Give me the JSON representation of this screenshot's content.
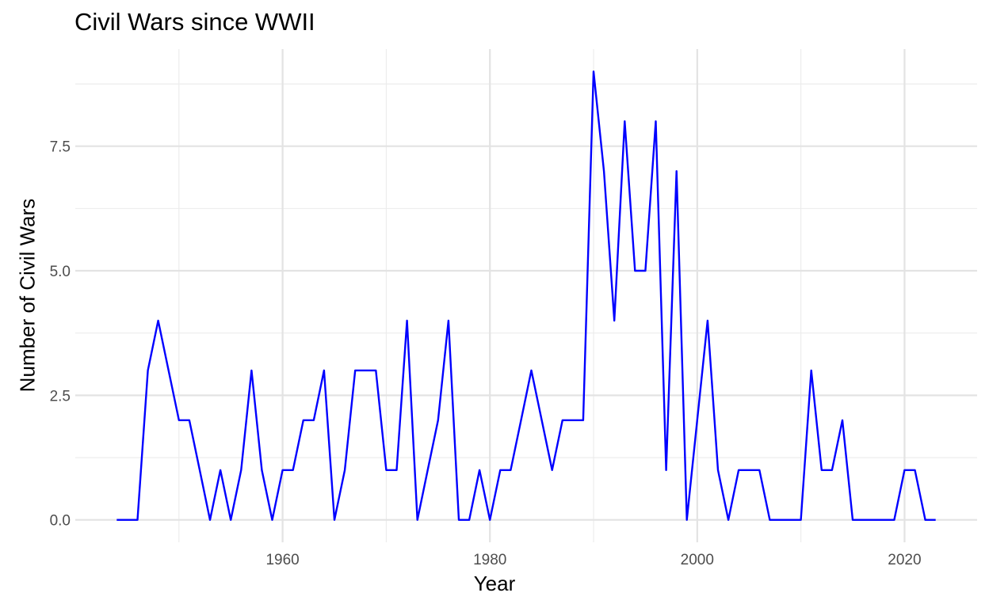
{
  "chart_data": {
    "type": "line",
    "title": "Civil Wars since WWII",
    "xlabel": "Year",
    "ylabel": "Number of Civil Wars",
    "xlim": [
      1940,
      2027
    ],
    "ylim": [
      -0.45,
      9.45
    ],
    "x_ticks": [
      1960,
      1980,
      2000,
      2020
    ],
    "x_tick_labels": [
      "1960",
      "1980",
      "2000",
      "2020"
    ],
    "y_ticks": [
      0,
      2.5,
      5,
      7.5
    ],
    "y_tick_labels": [
      "0.0",
      "2.5",
      "5.0",
      "7.5"
    ],
    "grid": true,
    "series": [
      {
        "color": "#0000ff",
        "x": [
          1944,
          1945,
          1946,
          1947,
          1948,
          1949,
          1950,
          1951,
          1952,
          1953,
          1954,
          1955,
          1956,
          1957,
          1958,
          1959,
          1960,
          1961,
          1962,
          1963,
          1964,
          1965,
          1966,
          1967,
          1968,
          1969,
          1970,
          1971,
          1972,
          1973,
          1974,
          1975,
          1976,
          1977,
          1978,
          1979,
          1980,
          1981,
          1982,
          1983,
          1984,
          1985,
          1986,
          1987,
          1988,
          1989,
          1990,
          1991,
          1992,
          1993,
          1994,
          1995,
          1996,
          1997,
          1998,
          1999,
          2000,
          2001,
          2002,
          2003,
          2004,
          2005,
          2006,
          2007,
          2008,
          2009,
          2010,
          2011,
          2012,
          2013,
          2014,
          2015,
          2016,
          2017,
          2018,
          2019,
          2020,
          2021,
          2022,
          2023
        ],
        "y": [
          0,
          0,
          0,
          3,
          4,
          3,
          2,
          2,
          1,
          0,
          1,
          0,
          1,
          3,
          1,
          0,
          1,
          1,
          2,
          2,
          3,
          0,
          1,
          3,
          3,
          3,
          1,
          1,
          4,
          0,
          1,
          2,
          4,
          0,
          0,
          1,
          0,
          1,
          1,
          2,
          3,
          2,
          1,
          2,
          2,
          2,
          9,
          7,
          4,
          8,
          5,
          5,
          8,
          1,
          7,
          0,
          2,
          4,
          1,
          0,
          1,
          1,
          1,
          0,
          0,
          0,
          0,
          3,
          1,
          1,
          2,
          0,
          0,
          0,
          0,
          0,
          1,
          1,
          0,
          0
        ]
      }
    ]
  }
}
